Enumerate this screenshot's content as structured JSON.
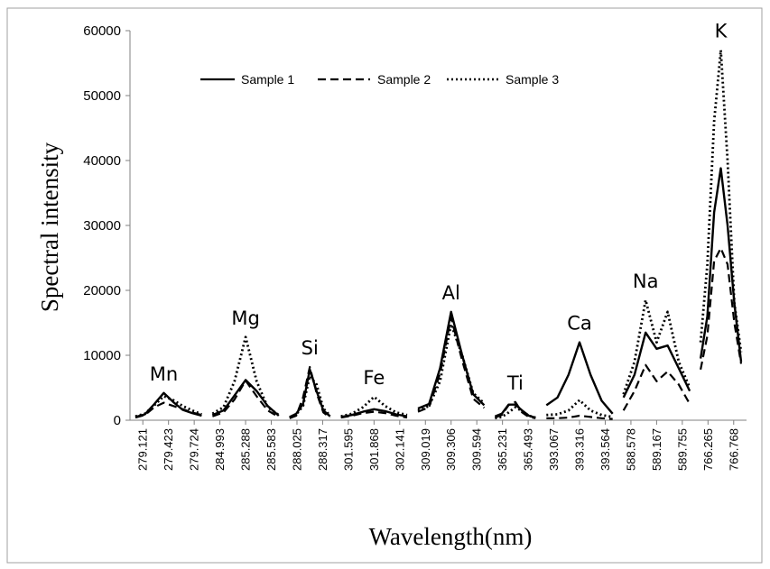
{
  "chart_data": {
    "type": "line",
    "xlabel": "Wavelength(nm)",
    "ylabel": "Spectral intensity",
    "ylim": [
      0,
      60000
    ],
    "yticks": [
      0,
      10000,
      20000,
      30000,
      40000,
      50000,
      60000
    ],
    "legend_position": "top-center",
    "groups": [
      {
        "label": "Mn",
        "ticks": [
          "279.121",
          "279.423",
          "279.724"
        ],
        "series": {
          "Sample 1": [
            500,
            900,
            2500,
            4200,
            2800,
            1600,
            1100,
            700
          ],
          "Sample 2": [
            400,
            800,
            2000,
            2700,
            2200,
            1700,
            1200,
            800
          ],
          "Sample 3": [
            600,
            1000,
            2300,
            3700,
            3100,
            2200,
            1500,
            900
          ]
        }
      },
      {
        "label": "Mg",
        "ticks": [
          "284.993",
          "285.288",
          "285.583"
        ],
        "series": {
          "Sample 1": [
            800,
            1500,
            3800,
            6200,
            4500,
            2200,
            700
          ],
          "Sample 2": [
            600,
            1200,
            3200,
            6100,
            3700,
            1500,
            500
          ],
          "Sample 3": [
            1000,
            2000,
            6000,
            12800,
            6000,
            2000,
            800
          ]
        }
      },
      {
        "label": "Si",
        "ticks": [
          "288.025",
          "288.317"
        ],
        "series": {
          "Sample 1": [
            500,
            1000,
            2500,
            7800,
            4500,
            1500,
            600
          ],
          "Sample 2": [
            300,
            700,
            3500,
            8200,
            4200,
            1200,
            400
          ],
          "Sample 3": [
            400,
            900,
            2200,
            6800,
            5500,
            1800,
            700
          ]
        }
      },
      {
        "label": "Fe",
        "ticks": [
          "301.595",
          "301.868",
          "302.141"
        ],
        "series": {
          "Sample 1": [
            500,
            800,
            1300,
            1700,
            1400,
            900,
            600
          ],
          "Sample 2": [
            400,
            700,
            1100,
            1300,
            1100,
            700,
            400
          ],
          "Sample 3": [
            600,
            1000,
            2000,
            3600,
            2200,
            1200,
            800
          ]
        }
      },
      {
        "label": "Al",
        "ticks": [
          "309.019",
          "309.306",
          "309.594"
        ],
        "series": {
          "Sample 1": [
            1800,
            2500,
            8000,
            16700,
            10000,
            4000,
            2300
          ],
          "Sample 2": [
            1300,
            2000,
            7200,
            15800,
            9200,
            3300,
            1900
          ],
          "Sample 3": [
            1500,
            2200,
            6000,
            14800,
            10000,
            4200,
            2600
          ]
        }
      },
      {
        "label": "Ti",
        "ticks": [
          "365.231",
          "365.493"
        ],
        "series": {
          "Sample 1": [
            600,
            1000,
            2400,
            2400,
            1500,
            700,
            400
          ],
          "Sample 2": [
            400,
            800,
            2300,
            2800,
            1200,
            500,
            300
          ],
          "Sample 3": [
            300,
            500,
            1200,
            2000,
            1400,
            700,
            400
          ]
        }
      },
      {
        "label": "Ca",
        "ticks": [
          "393.067",
          "393.316",
          "393.564"
        ],
        "series": {
          "Sample 1": [
            2300,
            3500,
            7000,
            12000,
            7000,
            3000,
            1000
          ],
          "Sample 2": [
            300,
            300,
            400,
            700,
            500,
            300,
            200
          ],
          "Sample 3": [
            800,
            900,
            1500,
            3100,
            1500,
            800,
            500
          ]
        }
      },
      {
        "label": "Na",
        "ticks": [
          "588.578",
          "589.167",
          "589.755"
        ],
        "series": {
          "Sample 1": [
            3500,
            7000,
            13500,
            11000,
            11500,
            8000,
            4500
          ],
          "Sample 2": [
            1500,
            4500,
            8500,
            6000,
            7500,
            5500,
            2500
          ],
          "Sample 3": [
            4000,
            9000,
            18500,
            12000,
            16700,
            9000,
            5000
          ]
        }
      },
      {
        "label": "K",
        "ticks": [
          "766.265",
          "766.768"
        ],
        "series": {
          "Sample 1": [
            9500,
            16000,
            32000,
            38800,
            30000,
            18000,
            9000
          ],
          "Sample 2": [
            7800,
            13000,
            24500,
            26500,
            24000,
            15000,
            8700
          ],
          "Sample 3": [
            12000,
            24000,
            46000,
            57000,
            40000,
            18000,
            10500
          ]
        }
      }
    ],
    "series": [
      {
        "name": "Sample 1",
        "style": "solid"
      },
      {
        "name": "Sample 2",
        "style": "dashed"
      },
      {
        "name": "Sample 3",
        "style": "dotted"
      }
    ]
  },
  "colors": {
    "line": "#000000",
    "axis": "#808080",
    "frame": "#a0a0a0"
  }
}
